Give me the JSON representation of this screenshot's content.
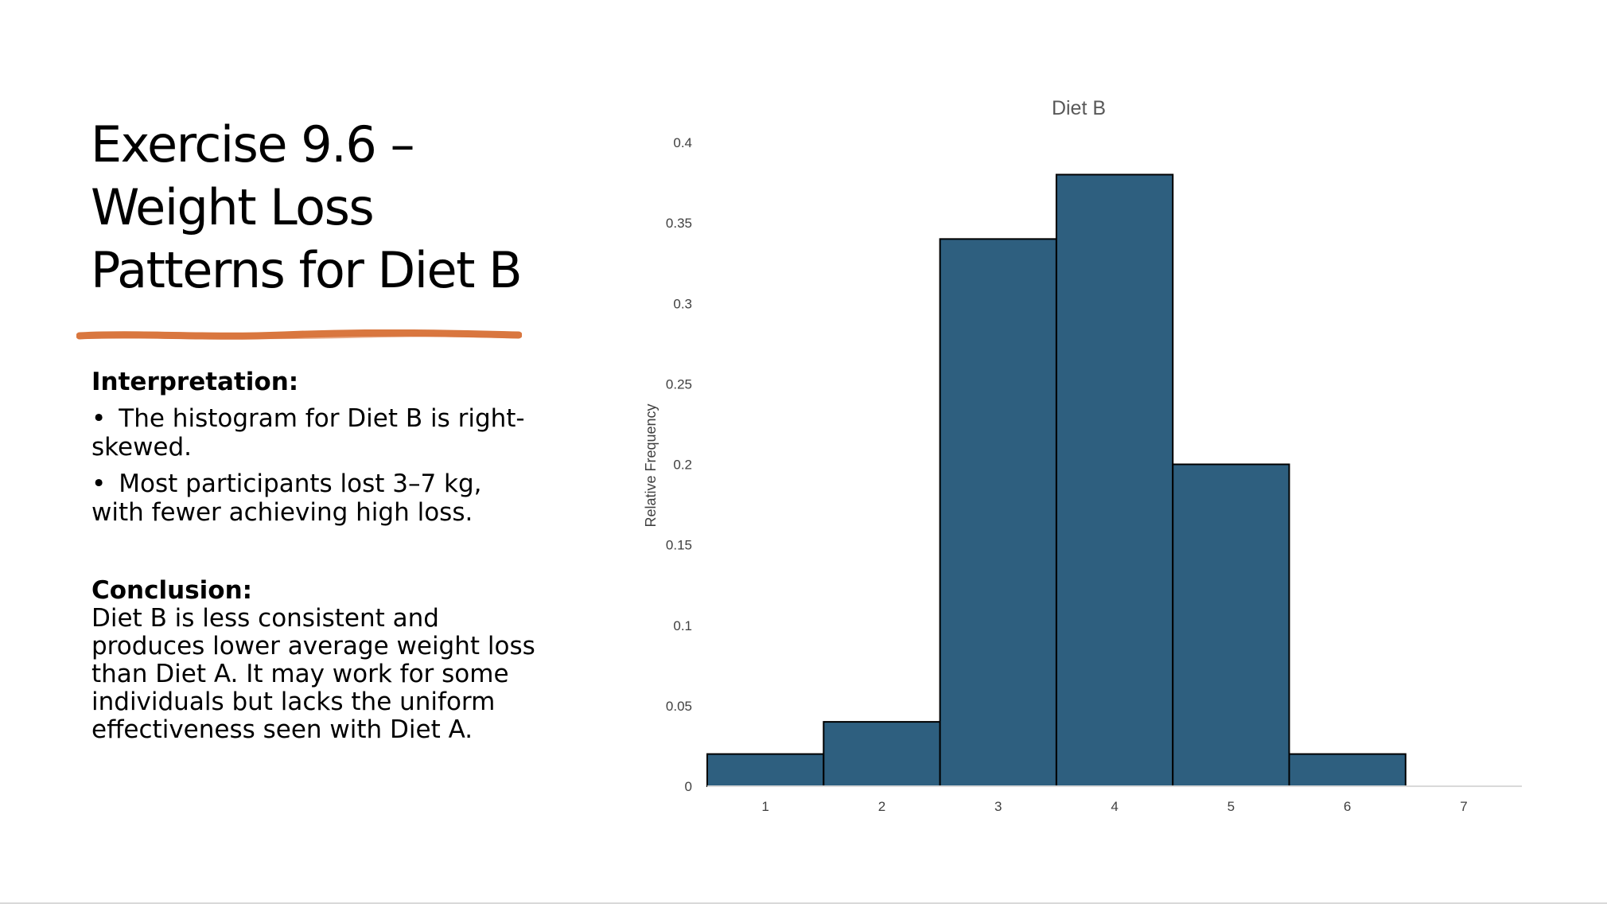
{
  "slide": {
    "title_lines": [
      "Exercise 9.6 –",
      "Weight Loss",
      "Patterns for Diet B"
    ],
    "interpretation_heading": "Interpretation:",
    "bullet_marker": "•",
    "bullets": [
      "The histogram for Diet B is right-skewed.",
      "Most participants lost 3–7 kg, with fewer achieving high loss."
    ],
    "conclusion_heading": "Conclusion:",
    "conclusion_text": "Diet B is less consistent and produces lower average weight loss than Diet A. It may work for some individuals but lacks the uniform effectiveness seen with Diet A.",
    "accent_color": "#d9773f"
  },
  "chart_data": {
    "type": "bar",
    "title": "Diet B",
    "xlabel": "",
    "ylabel": "Relative Frequency",
    "categories": [
      "1",
      "2",
      "3",
      "4",
      "5",
      "6",
      "7"
    ],
    "values": [
      0.02,
      0.04,
      0.34,
      0.38,
      0.2,
      0.02,
      0
    ],
    "ylim": [
      0,
      0.4
    ],
    "yticks": [
      "0",
      "0.05",
      "0.1",
      "0.15",
      "0.2",
      "0.25",
      "0.3",
      "0.35",
      "0.4"
    ],
    "grid": false,
    "bar_color": "#2e5f7f",
    "bar_edge_color": "#000000"
  }
}
